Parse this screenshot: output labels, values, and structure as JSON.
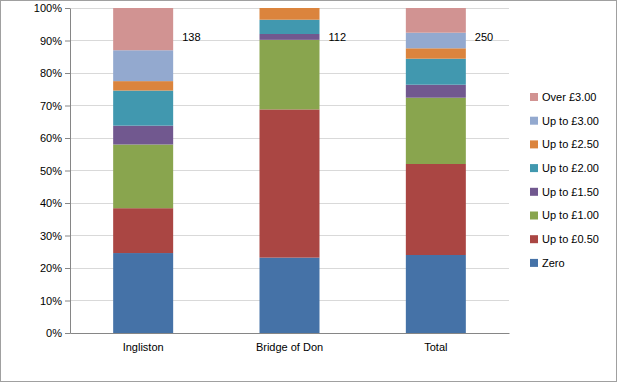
{
  "chart_data": {
    "type": "bar",
    "stacked": true,
    "categories": [
      "Ingliston",
      "Bridge of Don",
      "Total"
    ],
    "series": [
      {
        "name": "Zero",
        "color": "#4572a7",
        "values": [
          24.6,
          23.2,
          24.0
        ]
      },
      {
        "name": "Up to £0.50",
        "color": "#aa4643",
        "values": [
          13.8,
          45.6,
          28.0
        ]
      },
      {
        "name": "Up to £1.00",
        "color": "#89a54e",
        "values": [
          19.6,
          21.4,
          20.4
        ]
      },
      {
        "name": "Up to £1.50",
        "color": "#71588f",
        "values": [
          5.8,
          1.8,
          4.0
        ]
      },
      {
        "name": "Up to £2.00",
        "color": "#4198af",
        "values": [
          10.8,
          4.4,
          8.0
        ]
      },
      {
        "name": "Up to £2.50",
        "color": "#db843d",
        "values": [
          2.9,
          3.6,
          3.2
        ]
      },
      {
        "name": "Up to £3.00",
        "color": "#93a9cf",
        "values": [
          9.5,
          0,
          4.8
        ]
      },
      {
        "name": "Over £3.00",
        "color": "#d19392",
        "values": [
          13.0,
          0,
          7.6
        ]
      }
    ],
    "ylim": [
      0,
      100
    ],
    "yticks": [
      {
        "value": 0,
        "label": "0%"
      },
      {
        "value": 10,
        "label": "10%"
      },
      {
        "value": 20,
        "label": "20%"
      },
      {
        "value": 30,
        "label": "30%"
      },
      {
        "value": 40,
        "label": "40%"
      },
      {
        "value": 50,
        "label": "50%"
      },
      {
        "value": 60,
        "label": "60%"
      },
      {
        "value": 70,
        "label": "70%"
      },
      {
        "value": 80,
        "label": "80%"
      },
      {
        "value": 90,
        "label": "90%"
      },
      {
        "value": 100,
        "label": "100%"
      }
    ],
    "grid": true,
    "legend": "right",
    "sample_sizes": [
      138,
      112,
      250
    ]
  }
}
